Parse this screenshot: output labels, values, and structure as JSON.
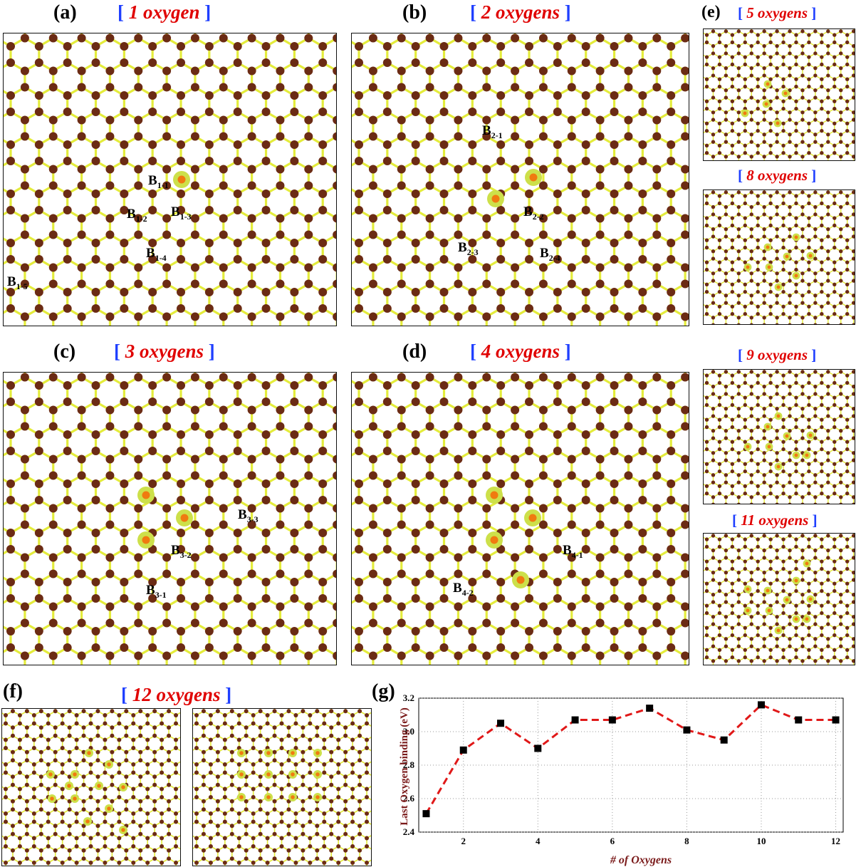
{
  "panels": {
    "a": {
      "label": "(a)",
      "title": "1 oxygen",
      "bonds": [
        "B1-1",
        "B1-2",
        "B1-3",
        "B1-4",
        "B1-5"
      ]
    },
    "b": {
      "label": "(b)",
      "title": "2 oxygens",
      "bonds": [
        "B2-1",
        "B2-2",
        "B2-3",
        "B2-4"
      ]
    },
    "c": {
      "label": "(c)",
      "title": "3 oxygens",
      "bonds": [
        "B3-1",
        "B3-2",
        "B3-3"
      ]
    },
    "d": {
      "label": "(d)",
      "title": "4 oxygens",
      "bonds": [
        "B4-1",
        "B4-2"
      ]
    },
    "e": {
      "label": "(e)",
      "titles": [
        "5 oxygens",
        "8 oxygens",
        "9 oxygens",
        "11 oxygens"
      ]
    },
    "f": {
      "label": "(f)",
      "title": "12 oxygens"
    },
    "g": {
      "label": "(g)"
    }
  },
  "bracket_open": "[",
  "bracket_close": "]",
  "colors": {
    "atom": "#6b2b14",
    "bond": "#e4ec3c",
    "oxygen_core": "#f07a10",
    "oxygen_shell": "#cde04a",
    "title": "#e00000",
    "bracket": "#1f3fff",
    "chart_line": "#e01818",
    "axis_label": "#7a1a1a"
  },
  "chart_data": {
    "type": "line",
    "xlabel": "# of Oxygens",
    "ylabel": "Last Oxygen binding (eV)",
    "x": [
      1,
      2,
      3,
      4,
      5,
      6,
      7,
      8,
      9,
      10,
      11,
      12
    ],
    "series": [
      {
        "values": [
          2.51,
          2.89,
          3.05,
          2.9,
          3.07,
          3.07,
          3.14,
          3.01,
          2.95,
          3.16,
          3.07,
          3.07
        ]
      }
    ],
    "xticks": [
      2,
      4,
      6,
      8,
      10,
      12
    ],
    "yticks": [
      2.4,
      2.6,
      2.8,
      3.0,
      3.2
    ],
    "xlim": [
      0.8,
      12.2
    ],
    "ylim": [
      2.4,
      3.2
    ],
    "grid": true,
    "line_style": "dashed",
    "marker": "square"
  }
}
